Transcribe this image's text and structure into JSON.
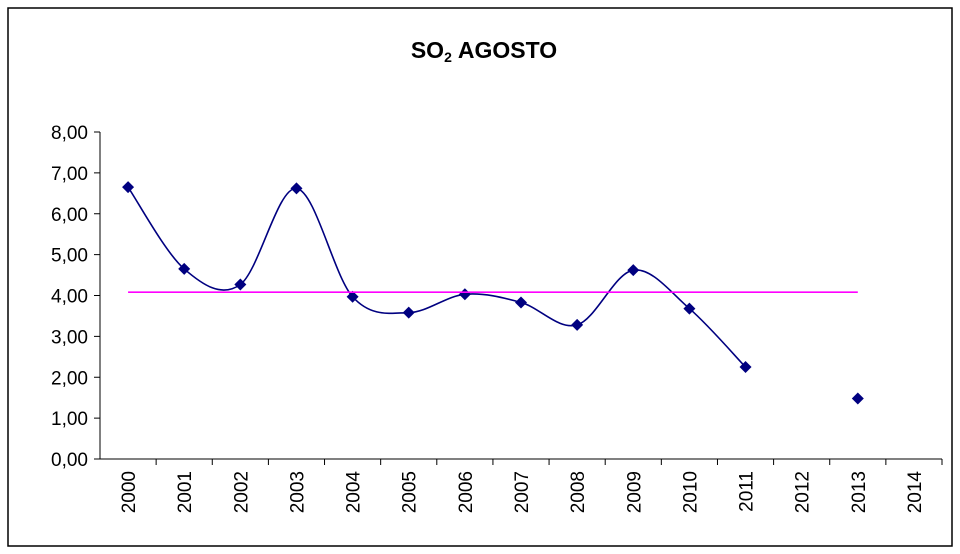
{
  "chart_data": {
    "type": "line",
    "title": [
      "SO",
      "2",
      "AGOSTO"
    ],
    "categories": [
      "2000",
      "2001",
      "2002",
      "2003",
      "2004",
      "2005",
      "2006",
      "2007",
      "2008",
      "2009",
      "2010",
      "2011",
      "2012",
      "2013",
      "2014"
    ],
    "series": [
      {
        "color": "#000080",
        "smooth": true,
        "marker": "diamond",
        "values": [
          6.65,
          4.65,
          4.27,
          6.62,
          3.97,
          3.58,
          4.03,
          3.83,
          3.28,
          4.62,
          3.68,
          2.25,
          null,
          1.48,
          null
        ]
      },
      {
        "color": "#ff00ff",
        "smooth": false,
        "marker": null,
        "values": [
          4.08,
          4.08,
          4.08,
          4.08,
          4.08,
          4.08,
          4.08,
          4.08,
          4.08,
          4.08,
          4.08,
          4.08,
          4.08,
          4.08,
          null
        ]
      }
    ],
    "ylim": [
      0,
      8
    ],
    "yticks": [
      {
        "value": 0,
        "label": "0,00"
      },
      {
        "value": 1,
        "label": "1,00"
      },
      {
        "value": 2,
        "label": "2,00"
      },
      {
        "value": 3,
        "label": "3,00"
      },
      {
        "value": 4,
        "label": "4,00"
      },
      {
        "value": 5,
        "label": "5,00"
      },
      {
        "value": 6,
        "label": "6,00"
      },
      {
        "value": 7,
        "label": "7,00"
      },
      {
        "value": 8,
        "label": "8,00"
      }
    ],
    "grid": false
  }
}
